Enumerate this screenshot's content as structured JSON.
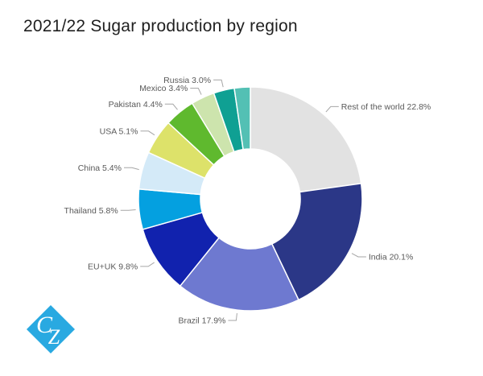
{
  "title": "2021/22 Sugar production by region",
  "logo": {
    "letter_c": "C",
    "letter_z": "Z",
    "background_color": "#29A9E1",
    "text_color": "#FFFFFF"
  },
  "chart_data": {
    "type": "pie",
    "subtype": "donut",
    "title": "2021/22 Sugar production by region",
    "unit": "%",
    "direction": "clockwise",
    "start_angle_deg": 0,
    "donut_hole_ratio": 0.446,
    "leader_line_color": "#A6A6A6",
    "label_text_color": "#595959",
    "slice_separator_color": "#FFFFFF",
    "segments": [
      {
        "label": "Rest of the world",
        "value": 22.8,
        "color": "#E2E2E2"
      },
      {
        "label": "India",
        "value": 20.1,
        "color": "#2B3787"
      },
      {
        "label": "Brazil",
        "value": 17.9,
        "color": "#6E79D0"
      },
      {
        "label": "EU+UK",
        "value": 9.8,
        "color": "#1122AE"
      },
      {
        "label": "Thailand",
        "value": 5.8,
        "color": "#04A0E0"
      },
      {
        "label": "China",
        "value": 5.4,
        "color": "#D4EAF8"
      },
      {
        "label": "USA",
        "value": 5.1,
        "color": "#DDE26A"
      },
      {
        "label": "Pakistan",
        "value": 4.4,
        "color": "#5FB92E"
      },
      {
        "label": "Mexico",
        "value": 3.4,
        "color": "#CDE4AD"
      },
      {
        "label": "Russia",
        "value": 3.0,
        "color": "#0FA093"
      },
      {
        "label": "",
        "value": 2.3,
        "color": "#53C0B4"
      }
    ]
  }
}
